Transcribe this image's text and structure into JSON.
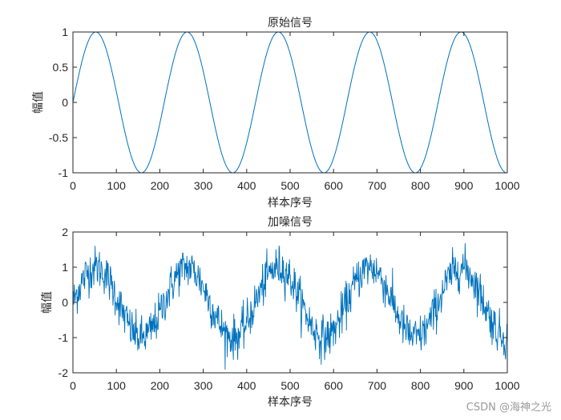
{
  "chart_data": [
    {
      "type": "line",
      "title": "原始信号",
      "xlabel": "样本序号",
      "ylabel": "幅值",
      "xlim": [
        0,
        1000
      ],
      "ylim": [
        -1,
        1
      ],
      "xticks": [
        "0",
        "100",
        "200",
        "300",
        "400",
        "500",
        "600",
        "700",
        "800",
        "900",
        "1000"
      ],
      "yticks": [
        "-1",
        "-0.5",
        "0",
        "0.5",
        "1"
      ],
      "grid": false,
      "series": [
        {
          "name": "原始信号",
          "function": "sin(2*pi*n/210)",
          "n_points": 1000,
          "period": 210,
          "amplitude": 1,
          "color": "#0072BD"
        }
      ]
    },
    {
      "type": "line",
      "title": "加噪信号",
      "xlabel": "样本序号",
      "ylabel": "幅值",
      "xlim": [
        0,
        1000
      ],
      "ylim": [
        -2,
        2
      ],
      "xticks": [
        "0",
        "100",
        "200",
        "300",
        "400",
        "500",
        "600",
        "700",
        "800",
        "900",
        "1000"
      ],
      "yticks": [
        "-2",
        "-1",
        "0",
        "1",
        "2"
      ],
      "grid": false,
      "series": [
        {
          "name": "加噪信号",
          "function": "sin(2*pi*n/210) + noise",
          "noise_std": 0.3,
          "n_points": 1000,
          "color": "#0072BD"
        }
      ]
    }
  ],
  "top": {
    "title": "原始信号",
    "xlabel": "样本序号",
    "ylabel": "幅值"
  },
  "bottom": {
    "title": "加噪信号",
    "xlabel": "样本序号",
    "ylabel": "幅值"
  },
  "watermark": "CSDN @海神之光",
  "colors": {
    "line": "#0072BD",
    "axis": "#262626"
  }
}
